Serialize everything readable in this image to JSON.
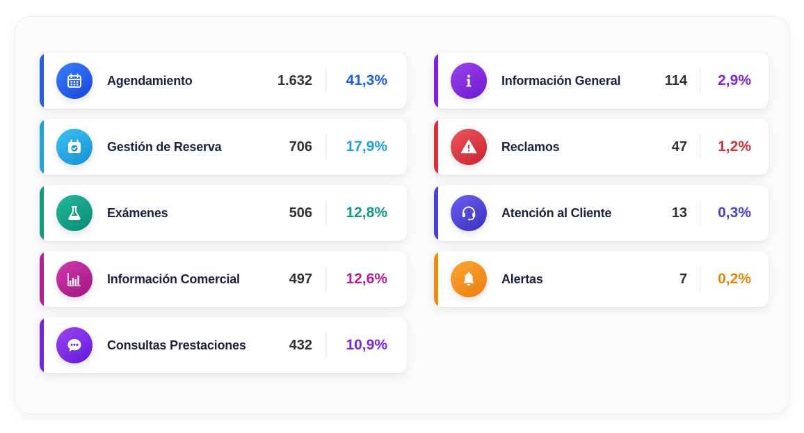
{
  "left_items": [
    {
      "label": "Agendamiento",
      "count": "1.632",
      "percent": "41,3%",
      "icon": "calendar-icon",
      "accent": "#1f5fe6",
      "gradient": [
        "#3a80ff",
        "#1844d8"
      ],
      "percent_color": "#1d5ee6"
    },
    {
      "label": "Gestión de Reserva",
      "count": "706",
      "percent": "17,9%",
      "icon": "calendar-check-icon",
      "accent": "#1ea4dc",
      "gradient": [
        "#3cc2f3",
        "#178fd2"
      ],
      "percent_color": "#1ea1da"
    },
    {
      "label": "Exámenes",
      "count": "506",
      "percent": "12,8%",
      "icon": "flask-icon",
      "accent": "#0f9b83",
      "gradient": [
        "#22b89d",
        "#0b8a74"
      ],
      "percent_color": "#119a82"
    },
    {
      "label": "Información Comercial",
      "count": "497",
      "percent": "12,6%",
      "icon": "bar-chart-icon",
      "accent": "#b81f93",
      "gradient": [
        "#d23aae",
        "#9f1580"
      ],
      "percent_color": "#b81f93"
    },
    {
      "label": "Consultas Prestaciones",
      "count": "432",
      "percent": "10,9%",
      "icon": "chat-bubble-icon",
      "accent": "#7424e0",
      "gradient": [
        "#9b45f5",
        "#6318d6"
      ],
      "percent_color": "#7a27e3"
    }
  ],
  "right_items": [
    {
      "label": "Información General",
      "count": "114",
      "percent": "2,9%",
      "icon": "info-icon",
      "accent": "#7b22d8",
      "gradient": [
        "#9e42ef",
        "#6a1bcc"
      ],
      "percent_color": "#7d26da"
    },
    {
      "label": "Reclamos",
      "count": "47",
      "percent": "1,2%",
      "icon": "warning-icon",
      "accent": "#d6303a",
      "gradient": [
        "#f0565c",
        "#c62230"
      ],
      "percent_color": "#d3303a"
    },
    {
      "label": "Atención al Cliente",
      "count": "13",
      "percent": "0,3%",
      "icon": "headset-icon",
      "accent": "#4a3fd0",
      "gradient": [
        "#6a5ff0",
        "#3a30c0"
      ],
      "percent_color": "#4c43cf"
    },
    {
      "label": "Alertas",
      "count": "7",
      "percent": "0,2%",
      "icon": "bell-icon",
      "accent": "#ec8a13",
      "gradient": [
        "#ffa733",
        "#e77d0e"
      ],
      "percent_color": "#e8860f"
    }
  ]
}
